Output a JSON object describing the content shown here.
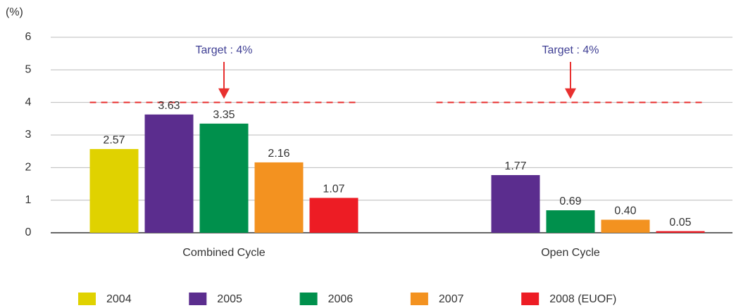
{
  "chart_data": {
    "type": "bar",
    "y_unit": "(%)",
    "categories": [
      "Combined Cycle",
      "Open Cycle"
    ],
    "series": [
      {
        "name": "2004",
        "color": "#e0d200",
        "values": [
          2.57,
          null
        ],
        "value_labels": [
          "2.57",
          null
        ]
      },
      {
        "name": "2005",
        "color": "#5b2d8e",
        "values": [
          3.63,
          1.77
        ],
        "value_labels": [
          "3.63",
          "1.77"
        ]
      },
      {
        "name": "2006",
        "color": "#00904c",
        "values": [
          3.35,
          0.69
        ],
        "value_labels": [
          "3.35",
          "0.69"
        ]
      },
      {
        "name": "2007",
        "color": "#f39220",
        "values": [
          2.16,
          0.4
        ],
        "value_labels": [
          "2.16",
          "0.40"
        ]
      },
      {
        "name": "2008 (EUOF)",
        "color": "#ed1c24",
        "values": [
          1.07,
          0.05
        ],
        "value_labels": [
          "1.07",
          "0.05"
        ]
      }
    ],
    "target": 4,
    "target_label": "Target : 4%",
    "target_color": "#e8302f",
    "ylim": [
      0,
      6
    ],
    "yticks": [
      0,
      1,
      2,
      3,
      4,
      5,
      6
    ],
    "grid": true,
    "legend": "bottom"
  }
}
